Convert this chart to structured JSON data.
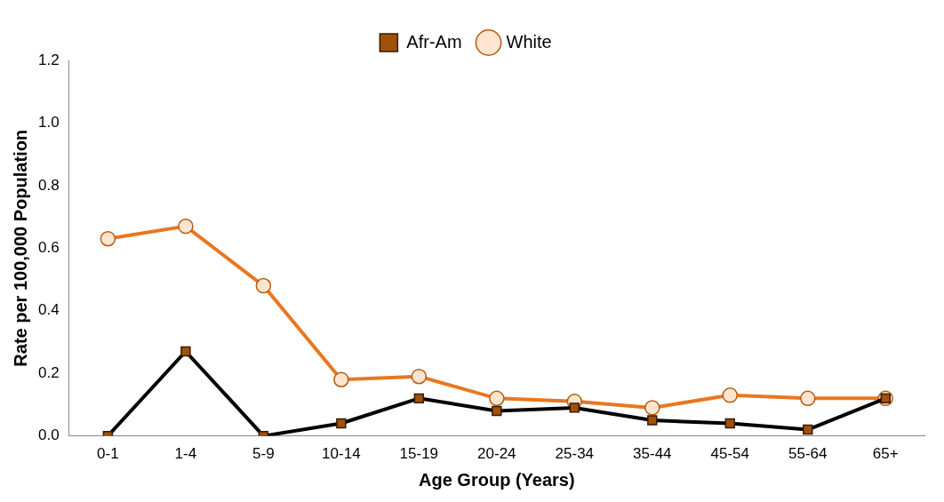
{
  "chart_data": {
    "type": "line",
    "xlabel": "Age Group (Years)",
    "ylabel": "Rate per 100,000 Population",
    "categories": [
      "0-1",
      "1-4",
      "5-9",
      "10-14",
      "15-19",
      "20-24",
      "25-34",
      "35-44",
      "45-54",
      "55-64",
      "65+"
    ],
    "series": [
      {
        "name": "White",
        "color": "#e87722",
        "marker": "circle",
        "values": [
          0.63,
          0.67,
          0.48,
          0.18,
          0.19,
          0.12,
          0.11,
          0.09,
          0.13,
          0.12,
          0.12
        ]
      },
      {
        "name": "Afr-Am",
        "color": "#000000",
        "marker": "square",
        "values": [
          0.0,
          0.27,
          0.0,
          0.04,
          0.12,
          0.08,
          0.09,
          0.05,
          0.04,
          0.02,
          0.12
        ]
      }
    ],
    "ylim": [
      0,
      1.2
    ],
    "yticks": [
      {
        "value": 0,
        "label": "0.0"
      },
      0.2,
      0.4,
      0.6,
      0.8,
      {
        "value": 1,
        "label": "1.0"
      },
      1.2
    ],
    "grid": false,
    "legend": "top",
    "line_style": "solid"
  }
}
